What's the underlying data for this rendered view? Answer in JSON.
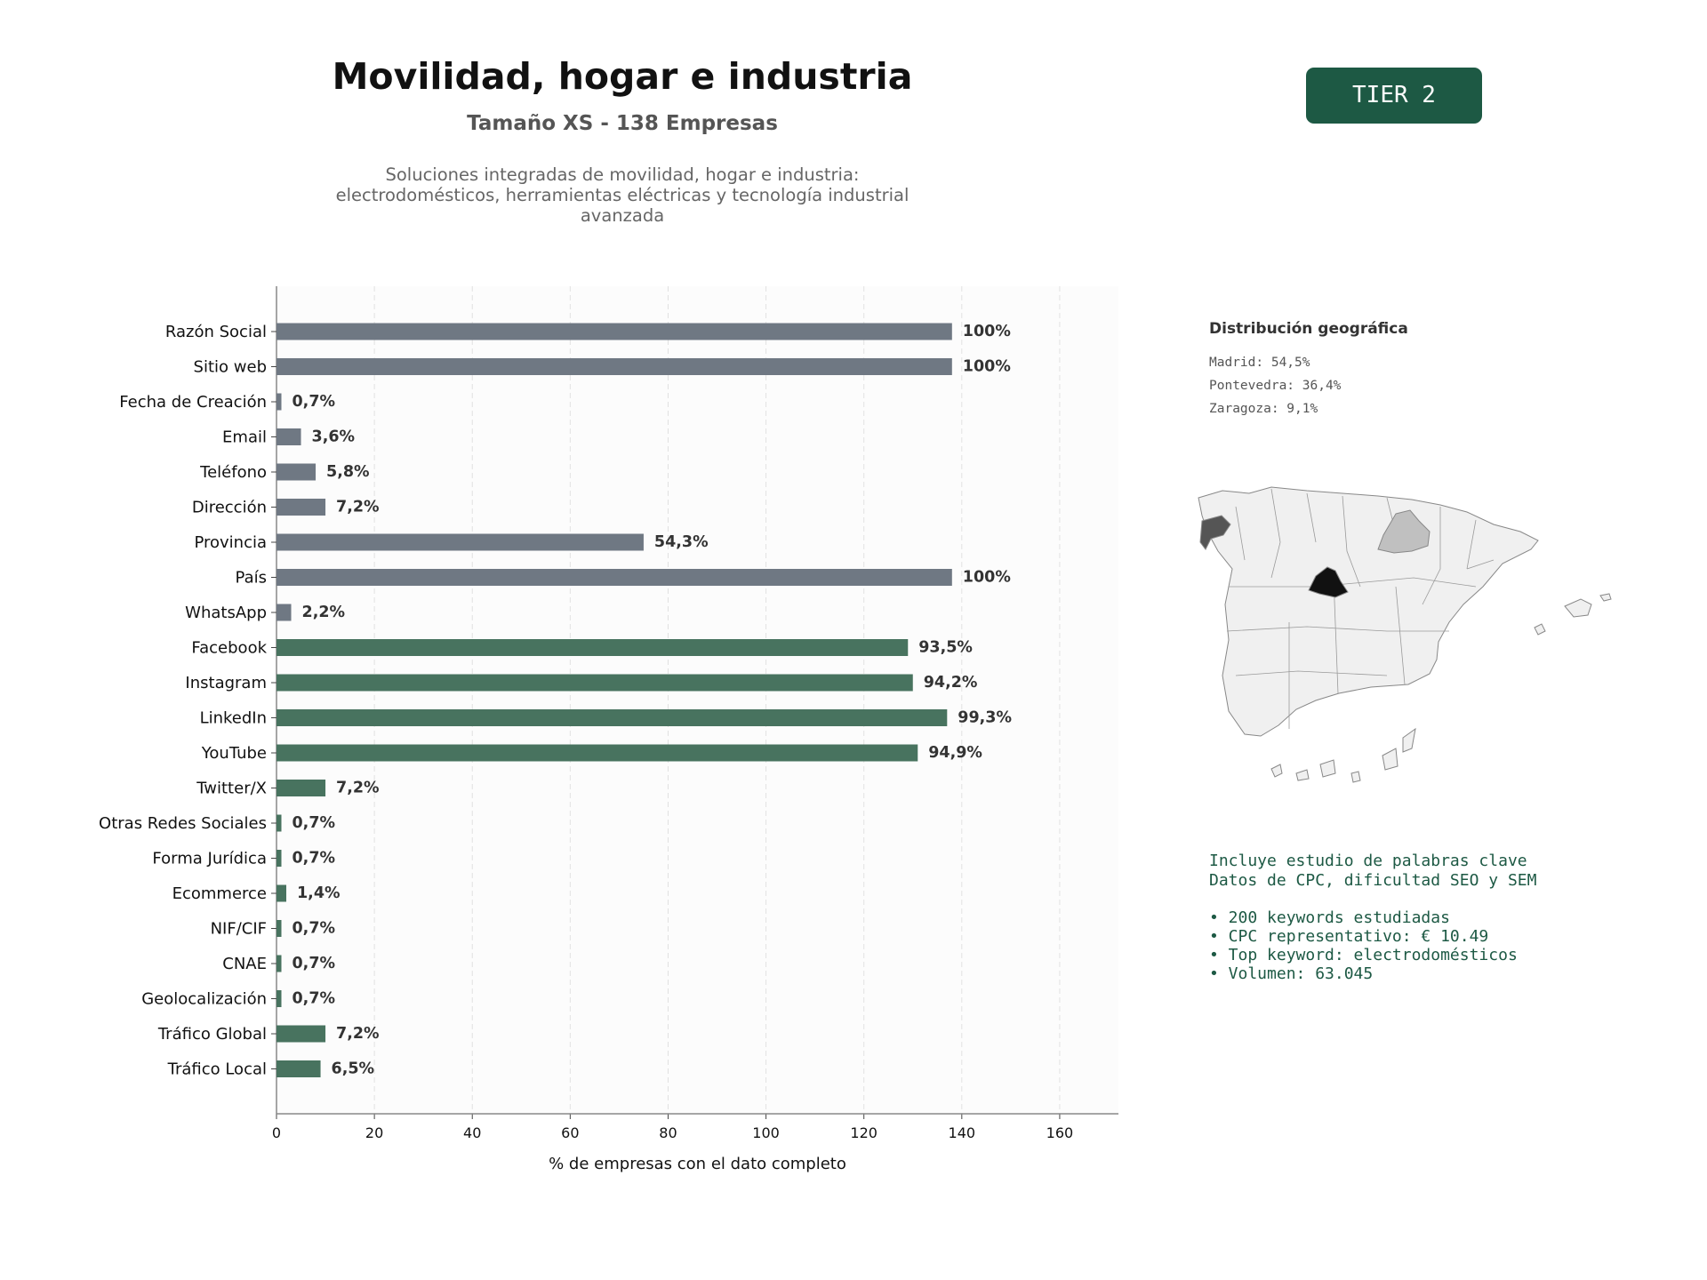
{
  "header": {
    "title": "Movilidad, hogar e industria",
    "subtitle": "Tamaño XS - 138 Empresas",
    "description": [
      "Soluciones integradas de movilidad, hogar e industria:",
      "electrodomésticos, herramientas eléctricas y tecnología industrial",
      "avanzada"
    ],
    "tier_badge": "TIER 2"
  },
  "colors": {
    "contact_bar": "#6f7883",
    "digital_bar": "#48735f",
    "badge": "#1d5944",
    "plot_bg": "#fcfcfc"
  },
  "chart_data": {
    "type": "bar",
    "orientation": "horizontal",
    "xlabel": "% de empresas con el dato completo",
    "ylabel": "",
    "xlim": [
      0,
      172
    ],
    "xticks": [
      0,
      20,
      40,
      60,
      80,
      100,
      120,
      140,
      160
    ],
    "grid": "vertical dashed",
    "categories": [
      "Razón Social",
      "Sitio web",
      "Fecha de Creación",
      "Email",
      "Teléfono",
      "Dirección",
      "Provincia",
      "País",
      "WhatsApp",
      "Facebook",
      "Instagram",
      "LinkedIn",
      "YouTube",
      "Twitter/X",
      "Otras Redes Sociales",
      "Forma Jurídica",
      "Ecommerce",
      "NIF/CIF",
      "CNAE",
      "Geolocalización",
      "Tráfico Global",
      "Tráfico Local"
    ],
    "values": [
      138,
      138,
      1,
      5,
      8,
      10,
      75,
      138,
      3,
      129,
      130,
      137,
      131,
      10,
      1,
      1,
      2,
      1,
      1,
      1,
      10,
      9
    ],
    "labels": [
      "100%",
      "100%",
      "0,7%",
      "3,6%",
      "5,8%",
      "7,2%",
      "54,3%",
      "100%",
      "2,2%",
      "93,5%",
      "94,2%",
      "99,3%",
      "94,9%",
      "7,2%",
      "0,7%",
      "0,7%",
      "1,4%",
      "0,7%",
      "0,7%",
      "0,7%",
      "7,2%",
      "6,5%"
    ],
    "bar_group": [
      "contact",
      "contact",
      "contact",
      "contact",
      "contact",
      "contact",
      "contact",
      "contact",
      "contact",
      "digital",
      "digital",
      "digital",
      "digital",
      "digital",
      "digital",
      "digital",
      "digital",
      "digital",
      "digital",
      "digital",
      "digital",
      "digital"
    ]
  },
  "geo": {
    "title": "Distribución geográfica",
    "items": [
      "Madrid: 54,5%",
      "Pontevedra: 36,4%",
      "Zaragoza: 9,1%"
    ],
    "map_colors": {
      "base": "#f0f0f0",
      "madrid": "#111111",
      "pontevedra": "#555555",
      "zaragoza": "#c0c0c0",
      "border": "#888888"
    }
  },
  "keywords": {
    "line1": "Incluye estudio de palabras clave",
    "line2": "Datos de CPC, dificultad SEO y SEM",
    "bullets": [
      "• 200 keywords estudiadas",
      "• CPC representativo: € 10.49",
      "• Top keyword: electrodomésticos",
      "• Volumen: 63.045"
    ]
  }
}
